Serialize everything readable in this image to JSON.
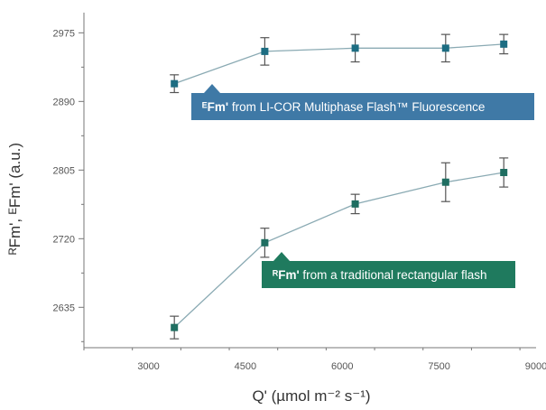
{
  "chart_data": {
    "type": "scatter",
    "xlabel": "Q' (µmol m⁻² s⁻¹)",
    "ylabel": "ᴿFm', ᴱFm' (a.u.)",
    "xlim": [
      2000,
      9000
    ],
    "ylim": [
      2585,
      3000
    ],
    "xticks": [
      3000,
      4500,
      6000,
      7500,
      9000
    ],
    "yticks": [
      2635,
      2720,
      2805,
      2890,
      2975
    ],
    "grid": false,
    "series": [
      {
        "name": "ᴱFm' from LI-COR Multiphase Flash™ Fluorescence",
        "label_bold": "ᴱFm'",
        "label_rest": " from LI-COR Multiphase Flash™ Fluorescence",
        "color": "#1d6d82",
        "callout_color": "#3f79a6",
        "x": [
          3400,
          4800,
          6200,
          7600,
          8500
        ],
        "y": [
          2912,
          2952,
          2956,
          2956,
          2961
        ],
        "err": [
          11,
          17,
          17,
          17,
          12
        ]
      },
      {
        "name": "ᴿFm' from a traditional rectangular flash",
        "label_bold": "ᴿFm'",
        "label_rest": " from a traditional rectangular flash",
        "color": "#1f6e61",
        "callout_color": "#1f7a5e",
        "x": [
          3400,
          4800,
          6200,
          7600,
          8500
        ],
        "y": [
          2610,
          2715,
          2763,
          2790,
          2802
        ],
        "err": [
          14,
          18,
          12,
          24,
          18
        ]
      }
    ]
  }
}
